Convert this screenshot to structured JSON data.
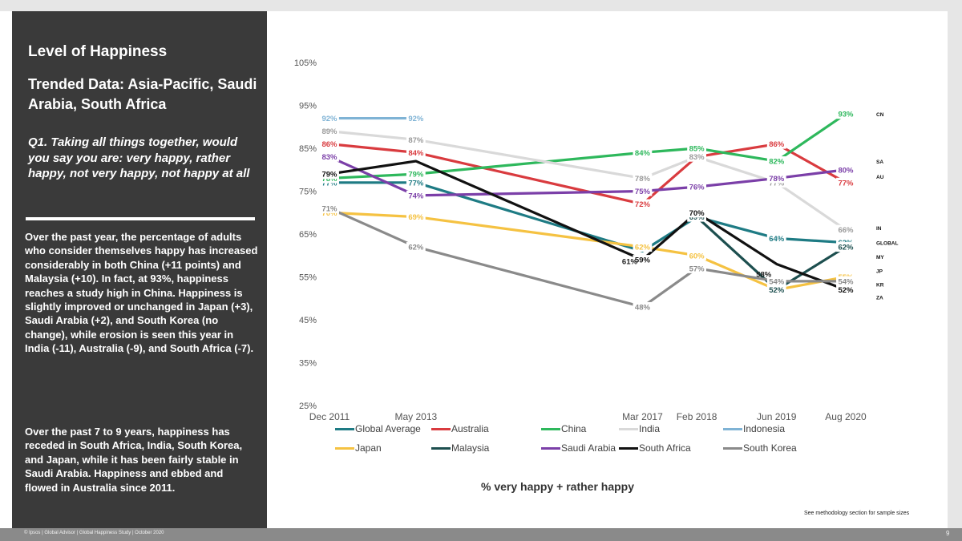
{
  "sidebar": {
    "title": "Level of Happiness",
    "subtitle": "Trended Data: Asia-Pacific, Saudi Arabia, South Africa",
    "question": "Q1. Taking all things together, would you say you are: very happy, rather happy, not very happy, not happy at all",
    "paragraph1": "Over the past year, the percentage of adults who consider themselves happy has increased considerably in both China (+11 points) and Malaysia (+10). In fact, at 93%, happiness reaches a study high in China. Happiness is slightly improved or unchanged in Japan (+3), Saudi Arabia (+2), and South Korea (no change), while erosion is seen this year in India (-11), Australia (-9), and South Africa (-7).",
    "paragraph2": "Over the past 7 to 9 years, happiness has receded in South Africa, India, South Korea, and Japan, while it has been fairly stable in Saudi Arabia. Happiness and ebbed and flowed in Australia since 2011."
  },
  "footer": {
    "source": "© Ipsos | Global Advisor | Global Happiness Study | October 2020",
    "page": "9"
  },
  "note": "See methodology section for sample sizes",
  "chart_data": {
    "type": "line",
    "title": "",
    "xlabel": "% very happy + rather happy",
    "ylabel": "",
    "ylim": [
      25,
      105
    ],
    "yticks": [
      25,
      35,
      45,
      55,
      65,
      75,
      85,
      95,
      105
    ],
    "ytick_labels": [
      "25%",
      "35%",
      "45%",
      "55%",
      "65%",
      "75%",
      "85%",
      "95%",
      "105%"
    ],
    "categories": [
      "Dec 2011",
      "May 2013",
      "Mar 2017",
      "Feb 2018",
      "Jun 2019",
      "Aug 2020"
    ],
    "x_positions": [
      2011.92,
      2013.37,
      2017.17,
      2018.08,
      2019.42,
      2020.58
    ],
    "series": [
      {
        "name": "Global Average",
        "code": "GLOBAL",
        "color": "#1e7b84",
        "values": [
          77,
          77,
          61,
          69,
          64,
          63
        ],
        "labels": [
          "77%",
          "77%",
          "",
          "",
          "64%",
          "63%"
        ]
      },
      {
        "name": "Australia",
        "code": "AU",
        "color": "#d93b3f",
        "values": [
          86,
          84,
          72,
          83,
          86,
          77
        ],
        "labels": [
          "86%",
          "84%",
          "72%",
          "",
          "86%",
          "77%"
        ]
      },
      {
        "name": "China",
        "code": "CN",
        "color": "#2eb85c",
        "values": [
          78,
          79,
          84,
          85,
          82,
          93
        ],
        "labels": [
          "78%",
          "79%",
          "84%",
          "85%",
          "82%",
          "93%"
        ]
      },
      {
        "name": "India",
        "code": "IN",
        "color": "#d9d9d9",
        "values": [
          89,
          87,
          78,
          83,
          77,
          66
        ],
        "labels": [
          "89%",
          "87%",
          "78%",
          "83%",
          "77%",
          "66%"
        ]
      },
      {
        "name": "Indonesia",
        "code": "",
        "color": "#7fb3d5",
        "values": [
          92,
          92,
          null,
          null,
          null,
          null
        ],
        "labels": [
          "92%",
          "92%",
          "",
          "",
          "",
          ""
        ]
      },
      {
        "name": "Japan",
        "code": "JP",
        "color": "#f5c242",
        "values": [
          70,
          69,
          62,
          60,
          52,
          55
        ],
        "labels": [
          "70%",
          "69%",
          "62%",
          "60%",
          "",
          "55%"
        ]
      },
      {
        "name": "Malaysia",
        "code": "MY",
        "color": "#1d4f4f",
        "values": [
          null,
          null,
          null,
          69,
          52,
          62
        ],
        "labels": [
          "",
          "",
          "",
          "69%",
          "52%",
          "62%"
        ]
      },
      {
        "name": "Saudi Arabia",
        "code": "SA",
        "color": "#7b3fa8",
        "values": [
          83,
          74,
          75,
          76,
          78,
          80
        ],
        "labels": [
          "83%",
          "74%",
          "75%",
          "76%",
          "78%",
          "80%"
        ]
      },
      {
        "name": "South Africa",
        "code": "ZA",
        "color": "#111111",
        "values": [
          79,
          82,
          59,
          70,
          58,
          52
        ],
        "labels": [
          "79%",
          "",
          "59%",
          "70%",
          "",
          "52%"
        ]
      },
      {
        "name": "South Korea",
        "code": "KR",
        "color": "#8a8a8a",
        "values": [
          71,
          62,
          48,
          57,
          54,
          54
        ],
        "labels": [
          "71%",
          "62%",
          "48%",
          "57%",
          "54%",
          "54%"
        ]
      }
    ],
    "end_labels": [
      {
        "code": "CN",
        "value": 93
      },
      {
        "code": "SA",
        "value": 82
      },
      {
        "code": "AU",
        "value": 78.5
      },
      {
        "code": "IN",
        "value": 66.5
      },
      {
        "code": "GLOBAL",
        "value": 63
      },
      {
        "code": "MY",
        "value": 59.8
      },
      {
        "code": "JP",
        "value": 56.5
      },
      {
        "code": "KR",
        "value": 53.3
      },
      {
        "code": "ZA",
        "value": 50.3
      }
    ],
    "unlabeled_points": [
      {
        "text": "61%",
        "series": "Global Average",
        "index": 2
      },
      {
        "text": "58%",
        "series": "South Africa",
        "index": 4
      }
    ]
  }
}
